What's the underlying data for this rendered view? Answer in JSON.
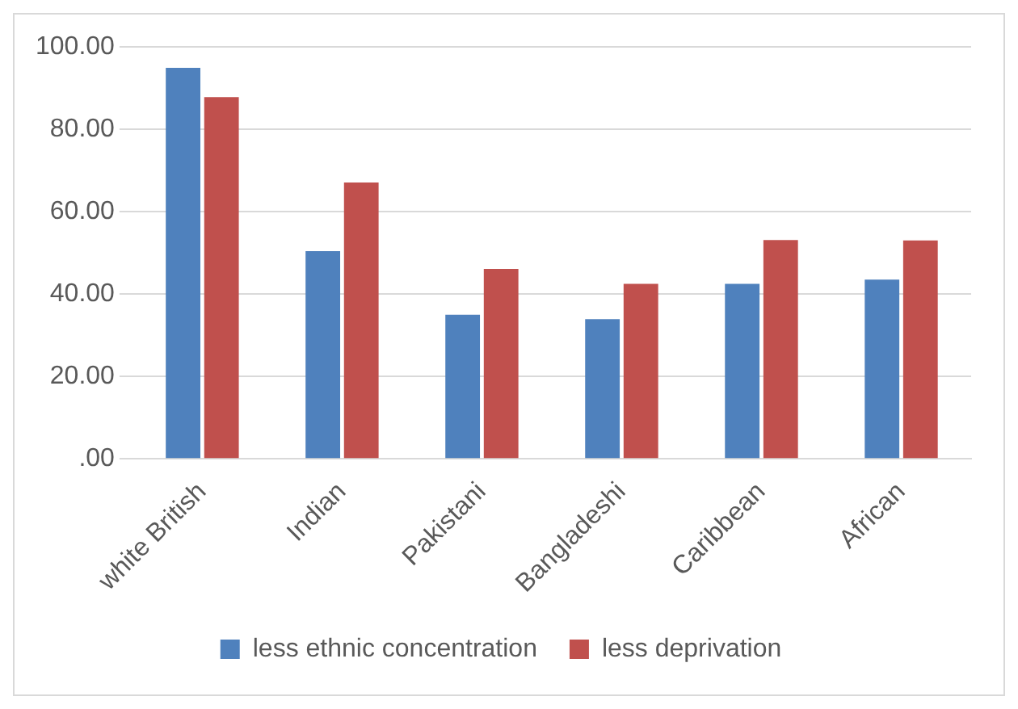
{
  "chart_data": {
    "type": "bar",
    "categories": [
      "white British",
      "Indian",
      "Pakistani",
      "Bangladeshi",
      "Caribbean",
      "African"
    ],
    "series": [
      {
        "name": "less ethnic concentration",
        "color": "#4f81bd",
        "values": [
          94.9,
          50.4,
          35.0,
          33.9,
          42.5,
          43.5
        ]
      },
      {
        "name": "less deprivation",
        "color": "#c0504d",
        "values": [
          87.8,
          67.1,
          46.1,
          42.5,
          53.1,
          53.0
        ]
      }
    ],
    "ylim": [
      0,
      100
    ],
    "yticks": [
      {
        "value": 0,
        "label": ".00"
      },
      {
        "value": 20,
        "label": "20.00"
      },
      {
        "value": 40,
        "label": "40.00"
      },
      {
        "value": 60,
        "label": "60.00"
      },
      {
        "value": 80,
        "label": "80.00"
      },
      {
        "value": 100,
        "label": "100.00"
      }
    ],
    "grid": "y",
    "legend": "bottom"
  }
}
